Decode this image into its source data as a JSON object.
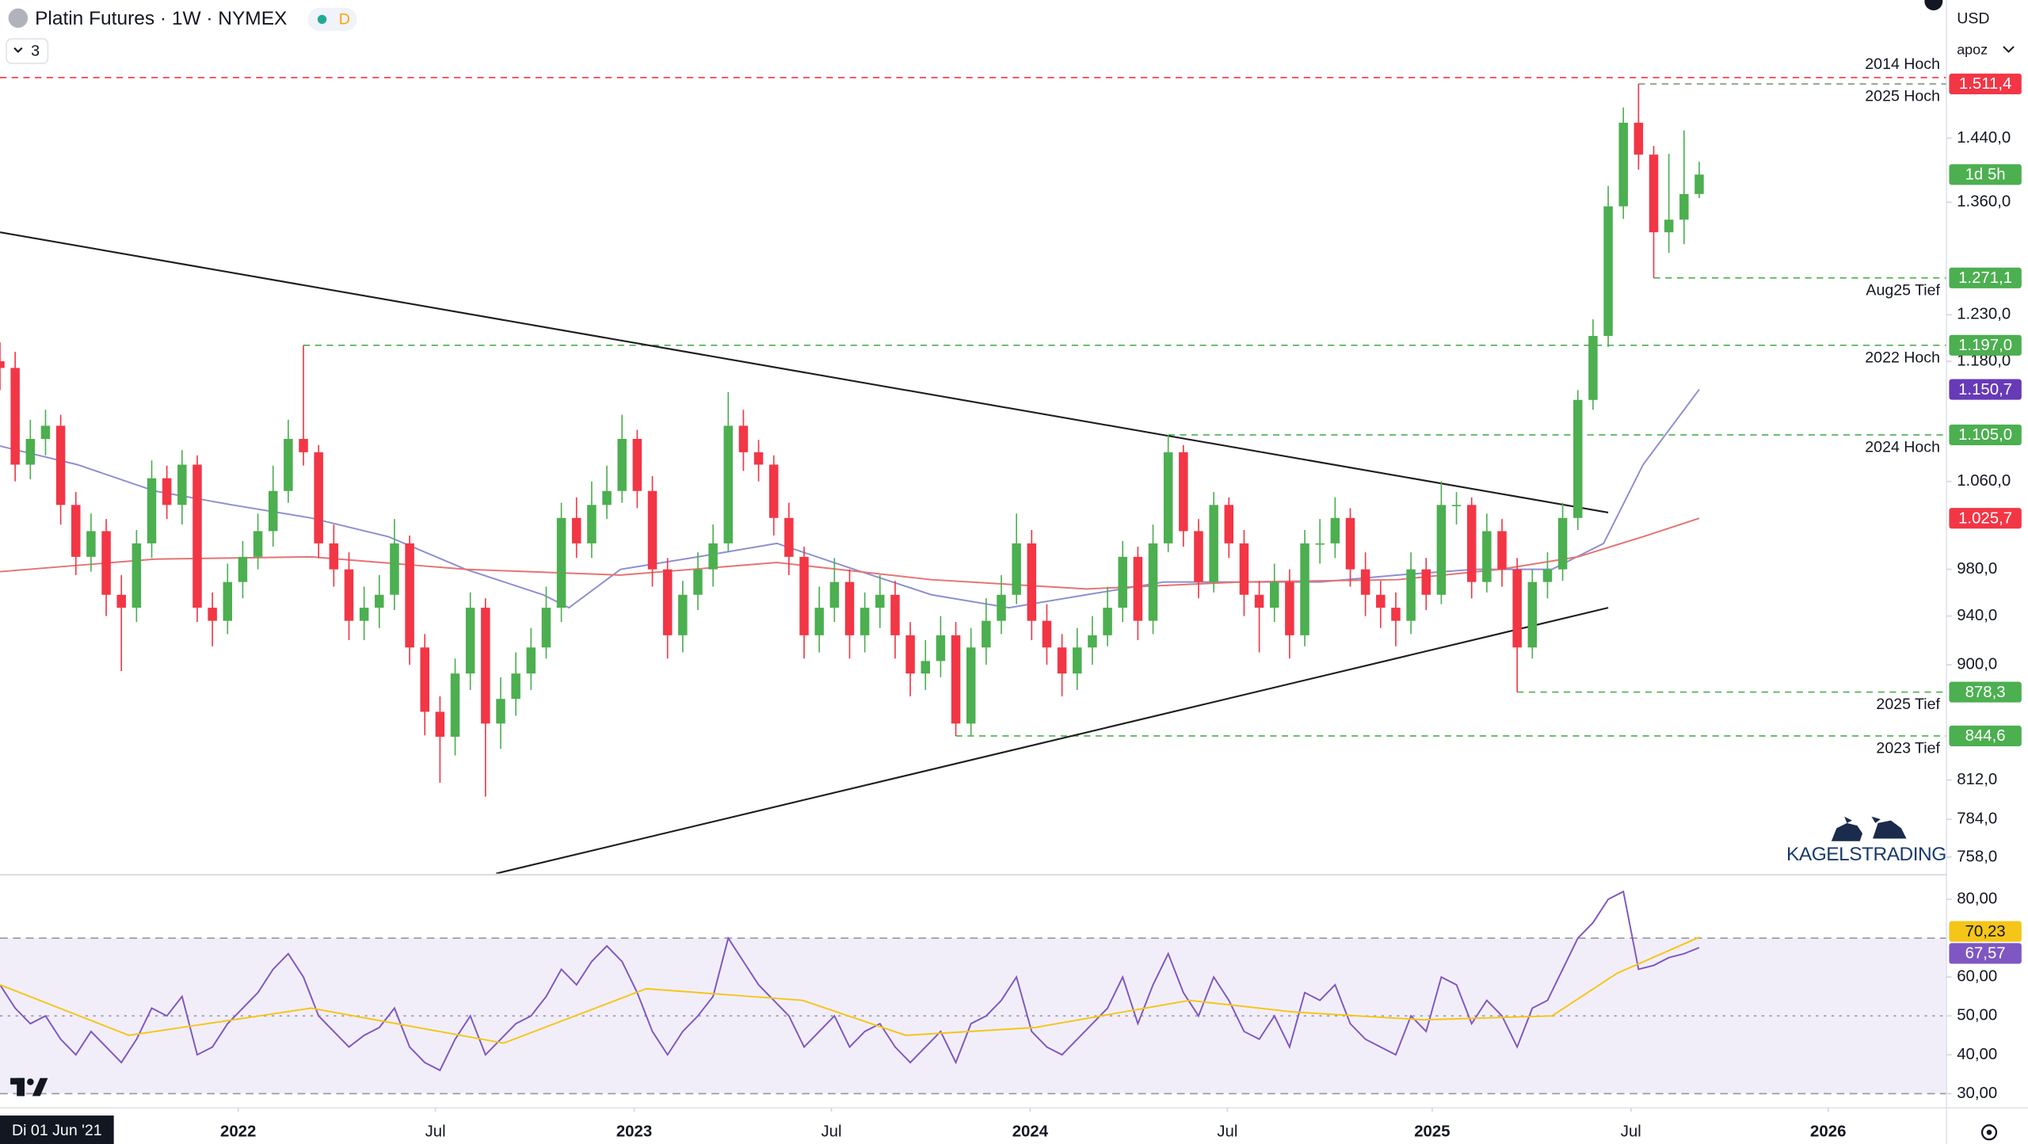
{
  "chart_data": {
    "type": "candlestick",
    "title": "Platin Futures · 1W · NYMEX",
    "up_color": "#4caf50",
    "down_color": "#f23645",
    "open": [
      1180,
      1173,
      1076,
      1101,
      1114,
      1038,
      991,
      1014,
      958,
      947,
      1003,
      1063,
      1038,
      1076,
      947,
      936,
      969,
      991,
      1014,
      1051,
      1101,
      1088,
      1003,
      980,
      936,
      947,
      958,
      1003,
      914,
      863,
      844,
      893,
      947,
      854,
      873,
      893,
      914,
      947,
      1026,
      1003,
      1038,
      1051,
      1101,
      1051,
      980,
      924,
      958,
      980,
      1003,
      1114,
      1088,
      1076,
      1026,
      991,
      924,
      947,
      969,
      924,
      947,
      958,
      924,
      893,
      903,
      924,
      854,
      914,
      936,
      958,
      1003,
      936,
      914,
      893,
      914,
      924,
      947,
      991,
      936,
      1003,
      1088,
      1014,
      969,
      1038,
      1003,
      958,
      947,
      969,
      924,
      1003,
      1003,
      1026,
      980,
      958,
      947,
      936,
      980,
      958,
      1038,
      1038,
      969,
      1014,
      980,
      914,
      969,
      980,
      1026,
      1140,
      1207,
      1355,
      1460,
      1419,
      1324,
      1339,
      1370
    ],
    "high": [
      1200,
      1190,
      1120,
      1130,
      1125,
      1050,
      1030,
      1025,
      975,
      1015,
      1080,
      1075,
      1090,
      1085,
      960,
      985,
      1005,
      1030,
      1075,
      1120,
      1197,
      1095,
      1020,
      995,
      965,
      975,
      1025,
      1010,
      925,
      875,
      905,
      960,
      955,
      890,
      910,
      930,
      965,
      1040,
      1045,
      1060,
      1075,
      1125,
      1110,
      1065,
      990,
      970,
      995,
      1020,
      1148,
      1130,
      1100,
      1085,
      1040,
      1000,
      965,
      990,
      980,
      960,
      975,
      970,
      935,
      920,
      940,
      935,
      930,
      955,
      975,
      1030,
      1015,
      950,
      925,
      930,
      940,
      965,
      1005,
      1000,
      1020,
      1105,
      1095,
      1025,
      1050,
      1045,
      1015,
      970,
      985,
      980,
      1015,
      1025,
      1045,
      1035,
      995,
      970,
      960,
      995,
      990,
      1060,
      1050,
      1045,
      1030,
      1025,
      990,
      980,
      995,
      1040,
      1150,
      1225,
      1380,
      1480,
      1511.4,
      1430,
      1420,
      1450,
      1410
    ],
    "low": [
      1150,
      1060,
      1062,
      1085,
      1020,
      975,
      978,
      940,
      895,
      935,
      990,
      1025,
      1020,
      935,
      915,
      925,
      955,
      980,
      1000,
      1040,
      1075,
      990,
      965,
      920,
      920,
      930,
      945,
      900,
      845,
      810,
      830,
      880,
      800,
      835,
      860,
      880,
      905,
      935,
      990,
      990,
      1025,
      1040,
      1035,
      965,
      905,
      910,
      945,
      965,
      995,
      1070,
      1060,
      1010,
      975,
      905,
      910,
      935,
      905,
      910,
      930,
      905,
      875,
      880,
      890,
      844.6,
      845,
      900,
      925,
      950,
      920,
      900,
      875,
      880,
      900,
      915,
      935,
      920,
      925,
      995,
      1000,
      955,
      960,
      990,
      940,
      910,
      935,
      905,
      915,
      985,
      990,
      965,
      940,
      930,
      915,
      925,
      945,
      950,
      1020,
      955,
      960,
      965,
      878.3,
      905,
      955,
      970,
      1015,
      1130,
      1195,
      1340,
      1400,
      1271.1,
      1300,
      1310,
      1365
    ],
    "close": [
      1173,
      1076,
      1101,
      1114,
      1038,
      991,
      1014,
      958,
      947,
      1003,
      1063,
      1038,
      1076,
      947,
      936,
      969,
      991,
      1014,
      1051,
      1101,
      1088,
      1003,
      980,
      936,
      947,
      958,
      1003,
      914,
      863,
      844,
      893,
      947,
      854,
      873,
      893,
      914,
      947,
      1026,
      1003,
      1038,
      1051,
      1101,
      1051,
      980,
      924,
      958,
      980,
      1003,
      1114,
      1088,
      1076,
      1026,
      991,
      924,
      947,
      969,
      924,
      947,
      958,
      924,
      893,
      903,
      924,
      854,
      914,
      936,
      958,
      1003,
      936,
      914,
      893,
      914,
      924,
      947,
      991,
      936,
      1003,
      1088,
      1014,
      969,
      1038,
      1003,
      958,
      947,
      969,
      924,
      1003,
      1003,
      1026,
      980,
      958,
      947,
      936,
      980,
      958,
      1038,
      1038,
      969,
      1014,
      980,
      914,
      969,
      980,
      1026,
      1140,
      1207,
      1355,
      1460,
      1419,
      1324,
      1339,
      1370,
      1394
    ],
    "log_scale": true,
    "grid": false,
    "ylim": [
      747,
      1629
    ],
    "yticks": [
      {
        "value": 1440,
        "label": "1.440,0"
      },
      {
        "value": 1360,
        "label": "1.360,0"
      },
      {
        "value": 1230,
        "label": "1.230,0"
      },
      {
        "value": 1180,
        "label": "1.180,0"
      },
      {
        "value": 1060,
        "label": "1.060,0"
      },
      {
        "value": 980,
        "label": "980,0"
      },
      {
        "value": 940,
        "label": "940,0"
      },
      {
        "value": 900,
        "label": "900,0"
      },
      {
        "value": 812,
        "label": "812,0"
      },
      {
        "value": 784,
        "label": "784,0"
      },
      {
        "value": 758,
        "label": "758,0"
      }
    ],
    "xlim": [
      0,
      128.3
    ],
    "xticks": [
      {
        "value": 15.7,
        "label": "2022"
      },
      {
        "value": 28.7,
        "label": "Jul"
      },
      {
        "value": 41.8,
        "label": "2023"
      },
      {
        "value": 54.8,
        "label": "Jul"
      },
      {
        "value": 67.9,
        "label": "2024"
      },
      {
        "value": 80.9,
        "label": "Jul"
      },
      {
        "value": 94.4,
        "label": "2025"
      },
      {
        "value": 107.5,
        "label": "Jul"
      },
      {
        "value": 120.5,
        "label": "2026"
      }
    ],
    "moving_averages": [
      {
        "color": "#8c8fd0",
        "x": [
          0,
          5.1,
          10.2,
          15.3,
          20.5,
          25.6,
          30.7,
          35.8,
          37.5,
          40.9,
          46,
          51.2,
          56.3,
          61.4,
          66.5,
          71.6,
          76.7,
          81.8,
          87,
          92.1,
          97.2,
          102.3,
          105.7,
          108.3,
          112
        ],
        "values": [
          1094,
          1076,
          1051,
          1038,
          1026,
          1009,
          980,
          958,
          947,
          980,
          991,
          1003,
          980,
          958,
          947,
          958,
          969,
          969,
          969,
          975,
          980,
          980,
          1003,
          1076,
          1150.7
        ],
        "value_label": "1.150,7",
        "box_color": "#673ab7"
      },
      {
        "color": "#e57373",
        "x": [
          0,
          10.2,
          20.5,
          30.7,
          40.9,
          51.2,
          61.4,
          71.6,
          81.8,
          92.1,
          98.9,
          104,
          108.3,
          112
        ],
        "values": [
          978,
          989,
          991,
          980,
          975,
          986,
          971,
          963,
          969,
          971,
          980,
          991,
          1009,
          1025.7
        ],
        "value_label": "1.025,7",
        "box_color": "#f23645"
      }
    ],
    "trendlines": [
      {
        "color": "#1e1e1e",
        "x": [
          0,
          106
        ],
        "values": [
          1324,
          1031
        ]
      },
      {
        "color": "#1e1e1e",
        "x": [
          32.7,
          106
        ],
        "values": [
          747,
          947
        ]
      }
    ],
    "levels": [
      {
        "label": "2014 Hoch",
        "value": 1520,
        "color": "#f23645",
        "label_position": "above"
      },
      {
        "label": "2025 Hoch",
        "value": 1511.4,
        "value_label": "1.511,4",
        "color": "#7a9a7a",
        "box_color": "#f23645"
      },
      {
        "label": "Aug25 Tief",
        "value": 1271.1,
        "value_label": "1.271,1",
        "color": "#4caf50",
        "box_color": "#4caf50"
      },
      {
        "label": "2022 Hoch",
        "value": 1197.0,
        "value_label": "1.197,0",
        "color": "#4caf50",
        "box_color": "#4caf50"
      },
      {
        "label": "2024 Hoch",
        "value": 1105.0,
        "value_label": "1.105,0",
        "color": "#4caf50",
        "box_color": "#4caf50"
      },
      {
        "label": "2025 Tief",
        "value": 878.3,
        "value_label": "878,3",
        "color": "#4caf50",
        "box_color": "#4caf50"
      },
      {
        "label": "2023 Tief",
        "value": 844.6,
        "value_label": "844,6",
        "color": "#4caf50",
        "box_color": "#4caf50"
      }
    ],
    "countdown": {
      "label": "1d 5h",
      "color": "#4caf50"
    },
    "rsi": {
      "type": "line",
      "ylim": [
        26.7,
        86.3
      ],
      "yticks": [
        {
          "value": 80,
          "label": "80,00"
        },
        {
          "value": 60,
          "label": "60,00"
        },
        {
          "value": 50,
          "label": "50,00"
        },
        {
          "value": 40,
          "label": "40,00"
        },
        {
          "value": 30,
          "label": "30,00"
        }
      ],
      "levels": [
        70,
        50,
        30
      ],
      "band_color": "rgba(126,87,194,0.10)",
      "line": {
        "color": "#7e57c2",
        "values": [
          58,
          52,
          48,
          50,
          44,
          40,
          46,
          42,
          38,
          44,
          52,
          50,
          55,
          40,
          42,
          48,
          52,
          56,
          62,
          66,
          60,
          50,
          46,
          42,
          45,
          47,
          52,
          42,
          38,
          36,
          44,
          50,
          40,
          44,
          48,
          50,
          55,
          62,
          58,
          64,
          68,
          64,
          56,
          46,
          40,
          46,
          50,
          55,
          70,
          64,
          58,
          54,
          50,
          42,
          46,
          50,
          42,
          46,
          48,
          42,
          38,
          42,
          46,
          38,
          48,
          50,
          54,
          60,
          46,
          42,
          40,
          44,
          48,
          52,
          60,
          48,
          58,
          66,
          56,
          50,
          60,
          54,
          46,
          44,
          50,
          42,
          56,
          54,
          58,
          48,
          44,
          42,
          40,
          50,
          46,
          60,
          58,
          48,
          54,
          50,
          42,
          52,
          54,
          62,
          70,
          74,
          80,
          82,
          62,
          63,
          65,
          66,
          67.57
        ],
        "value_label": "67,57",
        "box_color": "#7e57c2"
      },
      "ma": {
        "color": "#f5c518",
        "x": [
          0,
          8.5,
          20.5,
          33.2,
          42.6,
          52.9,
          59.7,
          68.2,
          78.4,
          85.3,
          93.8,
          102.3,
          106.6,
          112
        ],
        "values": [
          58,
          45,
          52,
          43,
          57,
          54,
          45,
          47,
          54,
          51,
          49,
          50,
          61,
          70.23
        ],
        "value_label": "70,23",
        "box_color": "#f5c518"
      }
    }
  },
  "ui": {
    "currency": "USD",
    "adjustment": "apoz",
    "badge": "D",
    "indicator_count": "3",
    "cursor_date": "Di 01 Jun '21",
    "watermark": "KAGELSTRADING"
  }
}
